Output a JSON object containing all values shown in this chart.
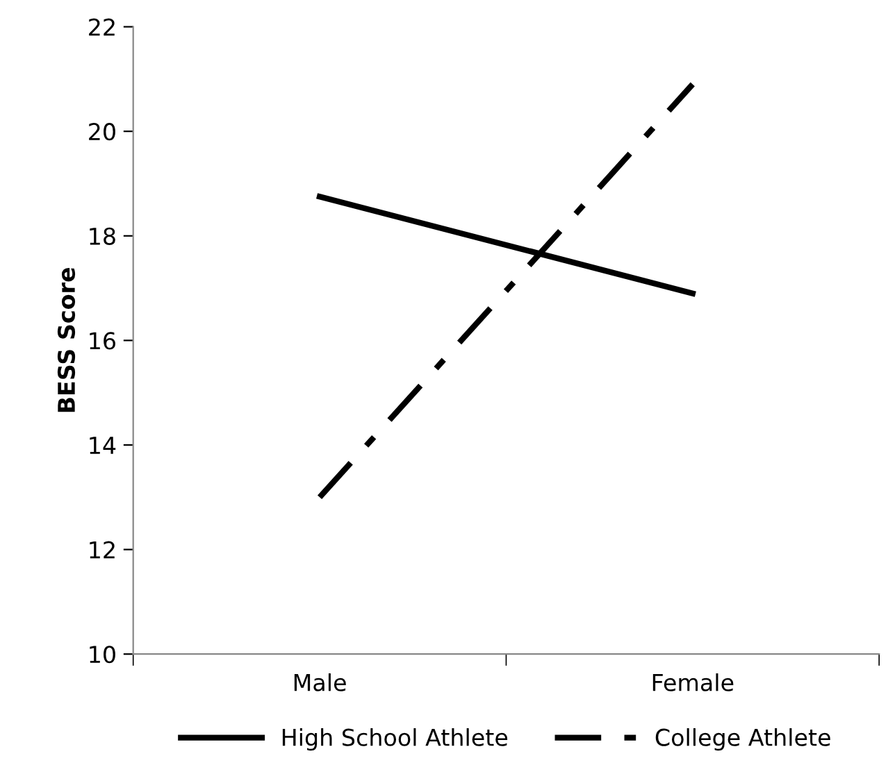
{
  "chart_data": {
    "type": "line",
    "ylabel": "BESS Score",
    "categories": [
      "Male",
      "Female"
    ],
    "series": [
      {
        "name": "High School Athlete",
        "color": "#000000",
        "values": [
          18.75,
          16.9
        ],
        "line_style": "solid"
      },
      {
        "name": "College Athlete",
        "color": "#000000",
        "values": [
          13.0,
          20.9
        ],
        "line_style": "dashdot"
      }
    ],
    "ylim": [
      10,
      22
    ],
    "yticks": [
      10,
      12,
      14,
      16,
      18,
      20,
      22
    ],
    "grid": false,
    "legend": "bottom",
    "marker": "none"
  }
}
